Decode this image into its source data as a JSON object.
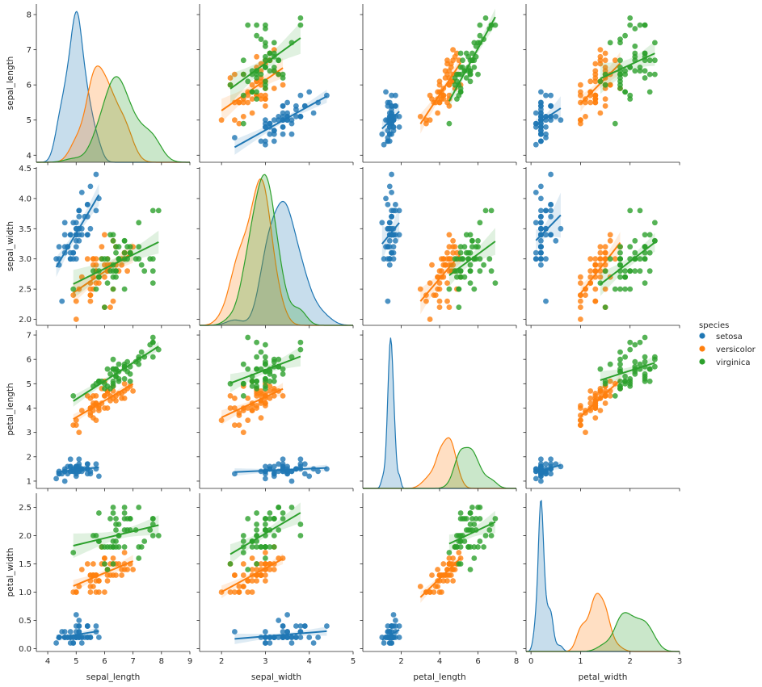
{
  "chart_data": {
    "type": "scatter",
    "variables": [
      "sepal_length",
      "sepal_width",
      "petal_length",
      "petal_width"
    ],
    "axis_ticks": {
      "sepal_length": [
        4,
        5,
        6,
        7,
        8
      ],
      "sepal_width": [
        2.0,
        2.5,
        3.0,
        3.5,
        4.0,
        4.5
      ],
      "petal_length": [
        1,
        2,
        3,
        4,
        5,
        6,
        7
      ],
      "petal_width": [
        0.0,
        0.5,
        1.0,
        1.5,
        2.0,
        2.5
      ]
    },
    "x_axis_ticks": {
      "sepal_length": [
        4,
        5,
        6,
        7,
        8,
        9
      ],
      "sepal_width": [
        2,
        3,
        4,
        5
      ],
      "petal_length": [
        2,
        4,
        6,
        8
      ],
      "petal_width": [
        0,
        1,
        2,
        3
      ]
    },
    "x_ranges": {
      "sepal_length": [
        3.6,
        9.0
      ],
      "sepal_width": [
        1.5,
        5.0
      ],
      "petal_length": [
        0.0,
        8.0
      ],
      "petal_width": [
        -0.1,
        3.0
      ]
    },
    "y_ranges": {
      "sepal_length": [
        3.8,
        8.3
      ],
      "sepal_width": [
        1.9,
        4.52
      ],
      "petal_length": [
        0.7,
        7.2
      ],
      "petal_width": [
        -0.05,
        2.75
      ]
    },
    "diagonal": "kde",
    "off_diagonal": "scatter with linear regression fit",
    "grid": false,
    "legend_placement": "right",
    "legend_title": "species",
    "series": [
      {
        "name": "setosa",
        "color": "#1f77b4",
        "stats": {
          "sepal_length": {
            "mean": 5.006,
            "sd": 0.352
          },
          "sepal_width": {
            "mean": 3.428,
            "sd": 0.379
          },
          "petal_length": {
            "mean": 1.462,
            "sd": 0.174
          },
          "petal_width": {
            "mean": 0.246,
            "sd": 0.105
          }
        },
        "points": [
          [
            5.1,
            3.5,
            1.4,
            0.2
          ],
          [
            4.9,
            3.0,
            1.4,
            0.2
          ],
          [
            4.7,
            3.2,
            1.3,
            0.2
          ],
          [
            4.6,
            3.1,
            1.5,
            0.2
          ],
          [
            5.0,
            3.6,
            1.4,
            0.2
          ],
          [
            5.4,
            3.9,
            1.7,
            0.4
          ],
          [
            4.6,
            3.4,
            1.4,
            0.3
          ],
          [
            5.0,
            3.4,
            1.5,
            0.2
          ],
          [
            4.4,
            2.9,
            1.4,
            0.2
          ],
          [
            4.9,
            3.1,
            1.5,
            0.1
          ],
          [
            5.4,
            3.7,
            1.5,
            0.2
          ],
          [
            4.8,
            3.4,
            1.6,
            0.2
          ],
          [
            4.8,
            3.0,
            1.4,
            0.1
          ],
          [
            4.3,
            3.0,
            1.1,
            0.1
          ],
          [
            5.8,
            4.0,
            1.2,
            0.2
          ],
          [
            5.7,
            4.4,
            1.5,
            0.4
          ],
          [
            5.4,
            3.9,
            1.3,
            0.4
          ],
          [
            5.1,
            3.5,
            1.4,
            0.3
          ],
          [
            5.7,
            3.8,
            1.7,
            0.3
          ],
          [
            5.1,
            3.8,
            1.5,
            0.3
          ],
          [
            5.4,
            3.4,
            1.7,
            0.2
          ],
          [
            5.1,
            3.7,
            1.5,
            0.4
          ],
          [
            4.6,
            3.6,
            1.0,
            0.2
          ],
          [
            5.1,
            3.3,
            1.7,
            0.5
          ],
          [
            4.8,
            3.4,
            1.9,
            0.2
          ],
          [
            5.0,
            3.0,
            1.6,
            0.2
          ],
          [
            5.0,
            3.4,
            1.6,
            0.4
          ],
          [
            5.2,
            3.5,
            1.5,
            0.2
          ],
          [
            5.2,
            3.4,
            1.4,
            0.2
          ],
          [
            4.7,
            3.2,
            1.6,
            0.2
          ],
          [
            4.8,
            3.1,
            1.6,
            0.2
          ],
          [
            5.4,
            3.4,
            1.5,
            0.4
          ],
          [
            5.2,
            4.1,
            1.5,
            0.1
          ],
          [
            5.5,
            4.2,
            1.4,
            0.2
          ],
          [
            4.9,
            3.1,
            1.5,
            0.2
          ],
          [
            5.0,
            3.2,
            1.2,
            0.2
          ],
          [
            5.5,
            3.5,
            1.3,
            0.2
          ],
          [
            4.9,
            3.6,
            1.4,
            0.1
          ],
          [
            4.4,
            3.0,
            1.3,
            0.2
          ],
          [
            5.1,
            3.4,
            1.5,
            0.2
          ],
          [
            5.0,
            3.5,
            1.3,
            0.3
          ],
          [
            4.5,
            2.3,
            1.3,
            0.3
          ],
          [
            4.4,
            3.2,
            1.3,
            0.2
          ],
          [
            5.0,
            3.5,
            1.6,
            0.6
          ],
          [
            5.1,
            3.8,
            1.9,
            0.4
          ],
          [
            4.8,
            3.0,
            1.4,
            0.3
          ],
          [
            5.1,
            3.8,
            1.6,
            0.2
          ],
          [
            4.6,
            3.2,
            1.4,
            0.2
          ],
          [
            5.3,
            3.7,
            1.5,
            0.2
          ],
          [
            5.0,
            3.3,
            1.4,
            0.2
          ]
        ]
      },
      {
        "name": "versicolor",
        "color": "#ff7f0e",
        "stats": {
          "sepal_length": {
            "mean": 5.936,
            "sd": 0.516
          },
          "sepal_width": {
            "mean": 2.77,
            "sd": 0.314
          },
          "petal_length": {
            "mean": 4.26,
            "sd": 0.47
          },
          "petal_width": {
            "mean": 1.326,
            "sd": 0.198
          }
        },
        "points": [
          [
            7.0,
            3.2,
            4.7,
            1.4
          ],
          [
            6.4,
            3.2,
            4.5,
            1.5
          ],
          [
            6.9,
            3.1,
            4.9,
            1.5
          ],
          [
            5.5,
            2.3,
            4.0,
            1.3
          ],
          [
            6.5,
            2.8,
            4.6,
            1.5
          ],
          [
            5.7,
            2.8,
            4.5,
            1.3
          ],
          [
            6.3,
            3.3,
            4.7,
            1.6
          ],
          [
            4.9,
            2.4,
            3.3,
            1.0
          ],
          [
            6.6,
            2.9,
            4.6,
            1.3
          ],
          [
            5.2,
            2.7,
            3.9,
            1.4
          ],
          [
            5.0,
            2.0,
            3.5,
            1.0
          ],
          [
            5.9,
            3.0,
            4.2,
            1.5
          ],
          [
            6.0,
            2.2,
            4.0,
            1.0
          ],
          [
            6.1,
            2.9,
            4.7,
            1.4
          ],
          [
            5.6,
            2.9,
            3.6,
            1.3
          ],
          [
            6.7,
            3.1,
            4.4,
            1.4
          ],
          [
            5.6,
            3.0,
            4.5,
            1.5
          ],
          [
            5.8,
            2.7,
            4.1,
            1.0
          ],
          [
            6.2,
            2.2,
            4.5,
            1.5
          ],
          [
            5.6,
            2.5,
            3.9,
            1.1
          ],
          [
            5.9,
            3.2,
            4.8,
            1.8
          ],
          [
            6.1,
            2.8,
            4.0,
            1.3
          ],
          [
            6.3,
            2.5,
            4.9,
            1.5
          ],
          [
            6.1,
            2.8,
            4.7,
            1.2
          ],
          [
            6.4,
            2.9,
            4.3,
            1.3
          ],
          [
            6.6,
            3.0,
            4.4,
            1.4
          ],
          [
            6.8,
            2.8,
            4.8,
            1.4
          ],
          [
            6.7,
            3.0,
            5.0,
            1.7
          ],
          [
            6.0,
            2.9,
            4.5,
            1.5
          ],
          [
            5.7,
            2.6,
            3.5,
            1.0
          ],
          [
            5.5,
            2.4,
            3.8,
            1.1
          ],
          [
            5.5,
            2.4,
            3.7,
            1.0
          ],
          [
            5.8,
            2.7,
            3.9,
            1.2
          ],
          [
            6.0,
            2.7,
            5.1,
            1.6
          ],
          [
            5.4,
            3.0,
            4.5,
            1.5
          ],
          [
            6.0,
            3.4,
            4.5,
            1.6
          ],
          [
            6.7,
            3.1,
            4.7,
            1.5
          ],
          [
            6.3,
            2.3,
            4.4,
            1.3
          ],
          [
            5.6,
            3.0,
            4.1,
            1.3
          ],
          [
            5.5,
            2.5,
            4.0,
            1.3
          ],
          [
            5.5,
            2.6,
            4.4,
            1.2
          ],
          [
            6.1,
            3.0,
            4.6,
            1.4
          ],
          [
            5.8,
            2.6,
            4.0,
            1.2
          ],
          [
            5.0,
            2.3,
            3.3,
            1.0
          ],
          [
            5.6,
            2.7,
            4.2,
            1.3
          ],
          [
            5.7,
            3.0,
            4.2,
            1.2
          ],
          [
            5.7,
            2.9,
            4.2,
            1.3
          ],
          [
            6.2,
            2.9,
            4.3,
            1.3
          ],
          [
            5.1,
            2.5,
            3.0,
            1.1
          ],
          [
            5.7,
            2.8,
            4.1,
            1.3
          ]
        ]
      },
      {
        "name": "virginica",
        "color": "#2ca02c",
        "stats": {
          "sepal_length": {
            "mean": 6.588,
            "sd": 0.636
          },
          "sepal_width": {
            "mean": 2.974,
            "sd": 0.322
          },
          "petal_length": {
            "mean": 5.552,
            "sd": 0.552
          },
          "petal_width": {
            "mean": 2.026,
            "sd": 0.275
          }
        },
        "points": [
          [
            6.3,
            3.3,
            6.0,
            2.5
          ],
          [
            5.8,
            2.7,
            5.1,
            1.9
          ],
          [
            7.1,
            3.0,
            5.9,
            2.1
          ],
          [
            6.3,
            2.9,
            5.6,
            1.8
          ],
          [
            6.5,
            3.0,
            5.8,
            2.2
          ],
          [
            7.6,
            3.0,
            6.6,
            2.1
          ],
          [
            4.9,
            2.5,
            4.5,
            1.7
          ],
          [
            7.3,
            2.9,
            6.3,
            1.8
          ],
          [
            6.7,
            2.5,
            5.8,
            1.8
          ],
          [
            7.2,
            3.6,
            6.1,
            2.5
          ],
          [
            6.5,
            3.2,
            5.1,
            2.0
          ],
          [
            6.4,
            2.7,
            5.3,
            1.9
          ],
          [
            6.8,
            3.0,
            5.5,
            2.1
          ],
          [
            5.7,
            2.5,
            5.0,
            2.0
          ],
          [
            5.8,
            2.8,
            5.1,
            2.4
          ],
          [
            6.4,
            3.2,
            5.3,
            2.3
          ],
          [
            6.5,
            3.0,
            5.5,
            1.8
          ],
          [
            7.7,
            3.8,
            6.7,
            2.2
          ],
          [
            7.7,
            2.6,
            6.9,
            2.3
          ],
          [
            6.0,
            2.2,
            5.0,
            1.5
          ],
          [
            6.9,
            3.2,
            5.7,
            2.3
          ],
          [
            5.6,
            2.8,
            4.9,
            2.0
          ],
          [
            7.7,
            2.8,
            6.7,
            2.0
          ],
          [
            6.3,
            2.7,
            4.9,
            1.8
          ],
          [
            6.7,
            3.3,
            5.7,
            2.1
          ],
          [
            7.2,
            3.2,
            6.0,
            1.8
          ],
          [
            6.2,
            2.8,
            4.8,
            1.8
          ],
          [
            6.1,
            3.0,
            4.9,
            1.8
          ],
          [
            6.4,
            2.8,
            5.6,
            2.1
          ],
          [
            7.2,
            3.0,
            5.8,
            1.6
          ],
          [
            7.4,
            2.8,
            6.1,
            1.9
          ],
          [
            7.9,
            3.8,
            6.4,
            2.0
          ],
          [
            6.4,
            2.8,
            5.6,
            2.2
          ],
          [
            6.3,
            2.8,
            5.1,
            1.5
          ],
          [
            6.1,
            2.6,
            5.6,
            1.4
          ],
          [
            7.7,
            3.0,
            6.1,
            2.3
          ],
          [
            6.3,
            3.4,
            5.6,
            2.4
          ],
          [
            6.4,
            3.1,
            5.5,
            1.8
          ],
          [
            6.0,
            3.0,
            4.8,
            1.8
          ],
          [
            6.9,
            3.1,
            5.4,
            2.1
          ],
          [
            6.7,
            3.1,
            5.6,
            2.4
          ],
          [
            6.9,
            3.1,
            5.1,
            2.3
          ],
          [
            5.8,
            2.7,
            5.1,
            1.9
          ],
          [
            6.8,
            3.2,
            5.9,
            2.3
          ],
          [
            6.7,
            3.3,
            5.7,
            2.5
          ],
          [
            6.7,
            3.0,
            5.2,
            2.3
          ],
          [
            6.3,
            2.5,
            5.0,
            1.9
          ],
          [
            6.5,
            3.0,
            5.2,
            2.0
          ],
          [
            6.2,
            3.4,
            5.4,
            2.3
          ],
          [
            5.9,
            3.0,
            5.1,
            1.8
          ]
        ]
      }
    ]
  }
}
